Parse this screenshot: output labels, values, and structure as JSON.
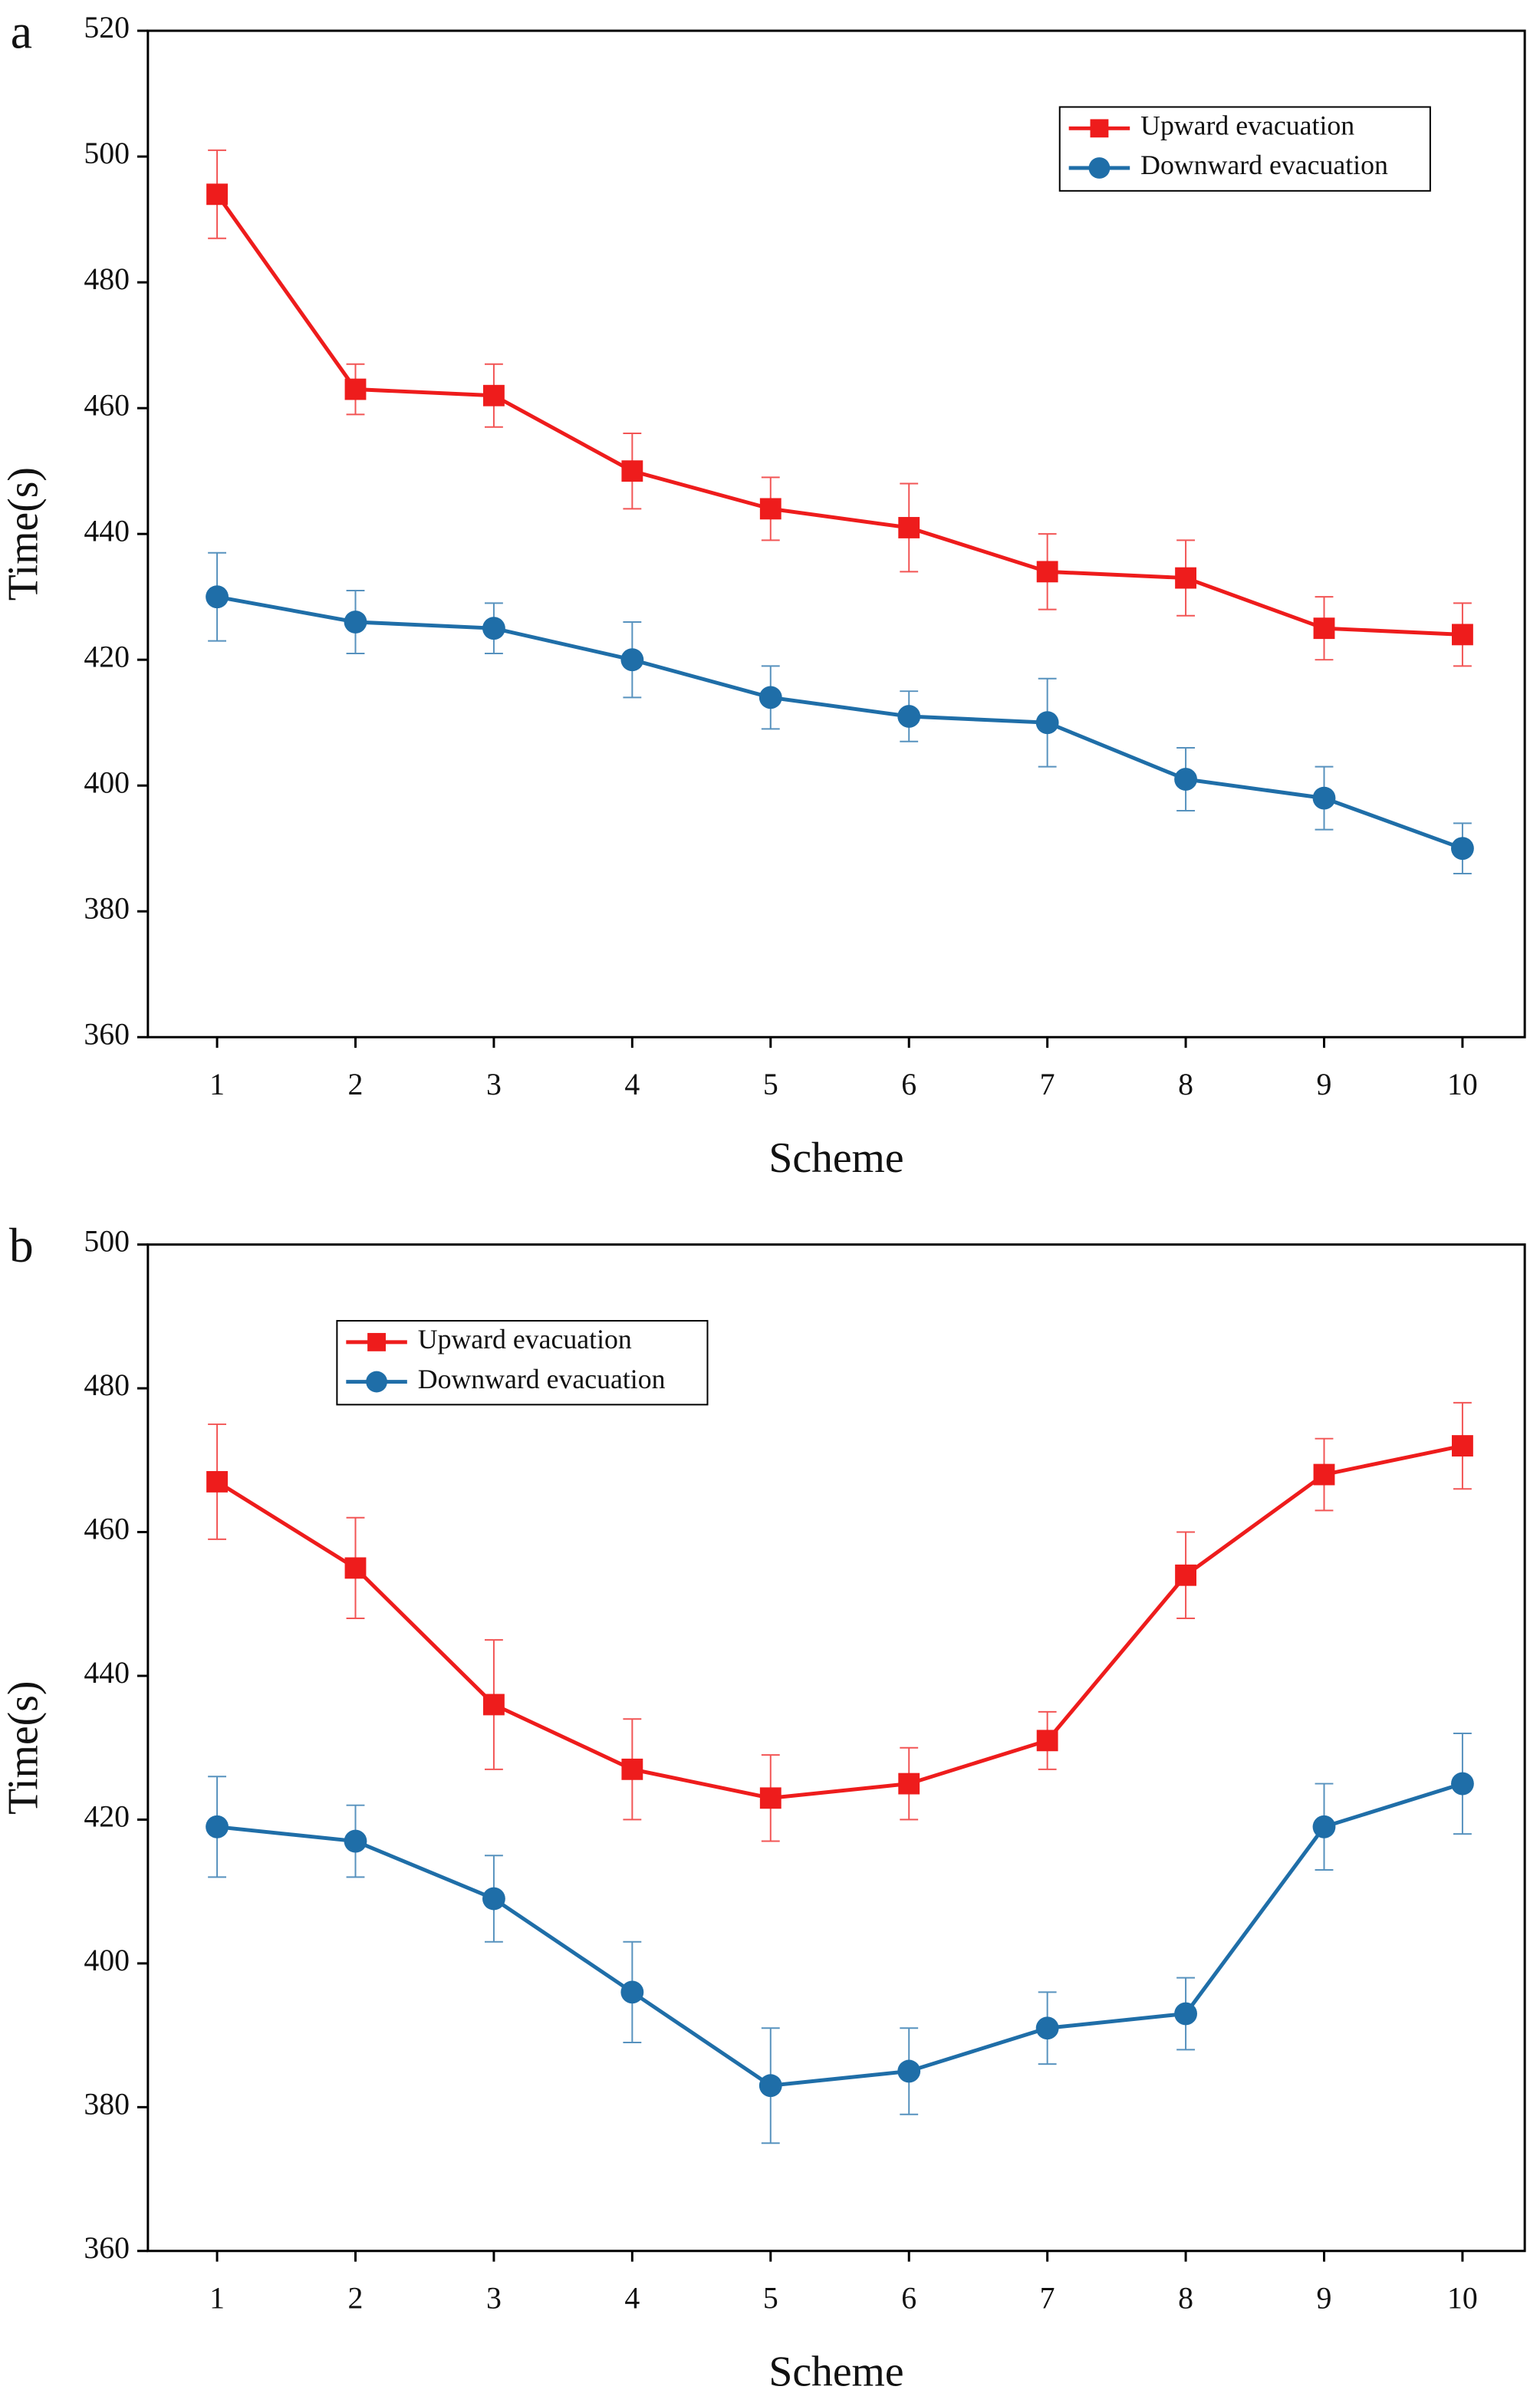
{
  "chart_data": [
    {
      "type": "line",
      "panel_label": "a",
      "xlabel": "Scheme",
      "ylabel": "Time(s)",
      "x": [
        1,
        2,
        3,
        4,
        5,
        6,
        7,
        8,
        9,
        10
      ],
      "xlim": [
        0.5,
        10.45
      ],
      "xticks": [
        1,
        2,
        3,
        4,
        5,
        6,
        7,
        8,
        9,
        10
      ],
      "ylim": [
        360,
        520
      ],
      "yticks": [
        360,
        380,
        400,
        420,
        440,
        460,
        480,
        500,
        520
      ],
      "legend": "upper right",
      "series": [
        {
          "name": "Upward evacuation",
          "color": "#ee1c1c",
          "marker": "square",
          "values": [
            494,
            463,
            462,
            450,
            444,
            441,
            434,
            433,
            425,
            424
          ],
          "errors": [
            7,
            4,
            5,
            6,
            5,
            7,
            6,
            6,
            5,
            5
          ]
        },
        {
          "name": "Downward evacuation",
          "color": "#1f6ea8",
          "marker": "circle",
          "values": [
            430,
            426,
            425,
            420,
            414,
            411,
            410,
            401,
            398,
            390
          ],
          "errors": [
            7,
            5,
            4,
            6,
            5,
            4,
            7,
            5,
            5,
            4
          ]
        }
      ]
    },
    {
      "type": "line",
      "panel_label": "b",
      "xlabel": "Scheme",
      "ylabel": "Time(s)",
      "x": [
        1,
        2,
        3,
        4,
        5,
        6,
        7,
        8,
        9,
        10
      ],
      "xlim": [
        0.5,
        10.45
      ],
      "xticks": [
        1,
        2,
        3,
        4,
        5,
        6,
        7,
        8,
        9,
        10
      ],
      "ylim": [
        360,
        500
      ],
      "yticks": [
        360,
        380,
        400,
        420,
        440,
        460,
        480,
        500
      ],
      "legend": "upper left",
      "series": [
        {
          "name": "Upward evacuation",
          "color": "#ee1c1c",
          "marker": "square",
          "values": [
            467,
            455,
            436,
            427,
            423,
            425,
            431,
            454,
            468,
            472
          ],
          "errors": [
            8,
            7,
            9,
            7,
            6,
            5,
            4,
            6,
            5,
            6
          ]
        },
        {
          "name": "Downward evacuation",
          "color": "#1f6ea8",
          "marker": "circle",
          "values": [
            419,
            417,
            409,
            396,
            383,
            385,
            391,
            393,
            419,
            425
          ],
          "errors": [
            7,
            5,
            6,
            7,
            8,
            6,
            5,
            5,
            6,
            7
          ]
        }
      ]
    }
  ]
}
